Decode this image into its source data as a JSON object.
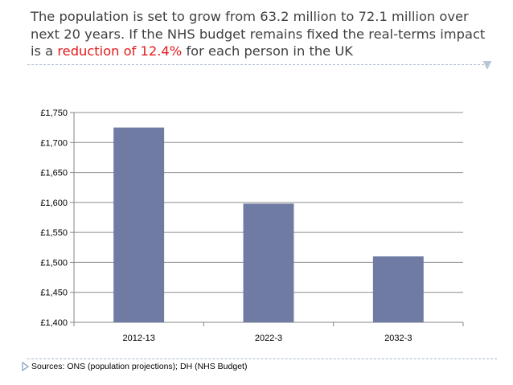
{
  "headline": {
    "line_part1": "The population is set to grow from 63.2 million to 72.1 million over next 20 years. If the NHS budget remains fixed the real-terms impact is a ",
    "highlight": "reduction of 12.4%",
    "line_part2": " for each person in the UK",
    "highlight_color": "#e31a1c"
  },
  "footer": {
    "sources": "Sources: ONS (population projections); DH (NHS Budget)"
  },
  "chart_data": {
    "type": "bar",
    "title": "",
    "xlabel": "",
    "ylabel": "",
    "categories": [
      "2012-13",
      "2022-3",
      "2032-3"
    ],
    "values": [
      1725,
      1598,
      1510
    ],
    "ylim": [
      1400,
      1750
    ],
    "yticks": [
      1400,
      1450,
      1500,
      1550,
      1600,
      1650,
      1700,
      1750
    ],
    "ytick_labels": [
      "£1,400",
      "£1,450",
      "£1,500",
      "£1,550",
      "£1,600",
      "£1,650",
      "£1,700",
      "£1,750"
    ],
    "grid": true,
    "legend": "none",
    "bar_color": "#6f7ba3"
  }
}
